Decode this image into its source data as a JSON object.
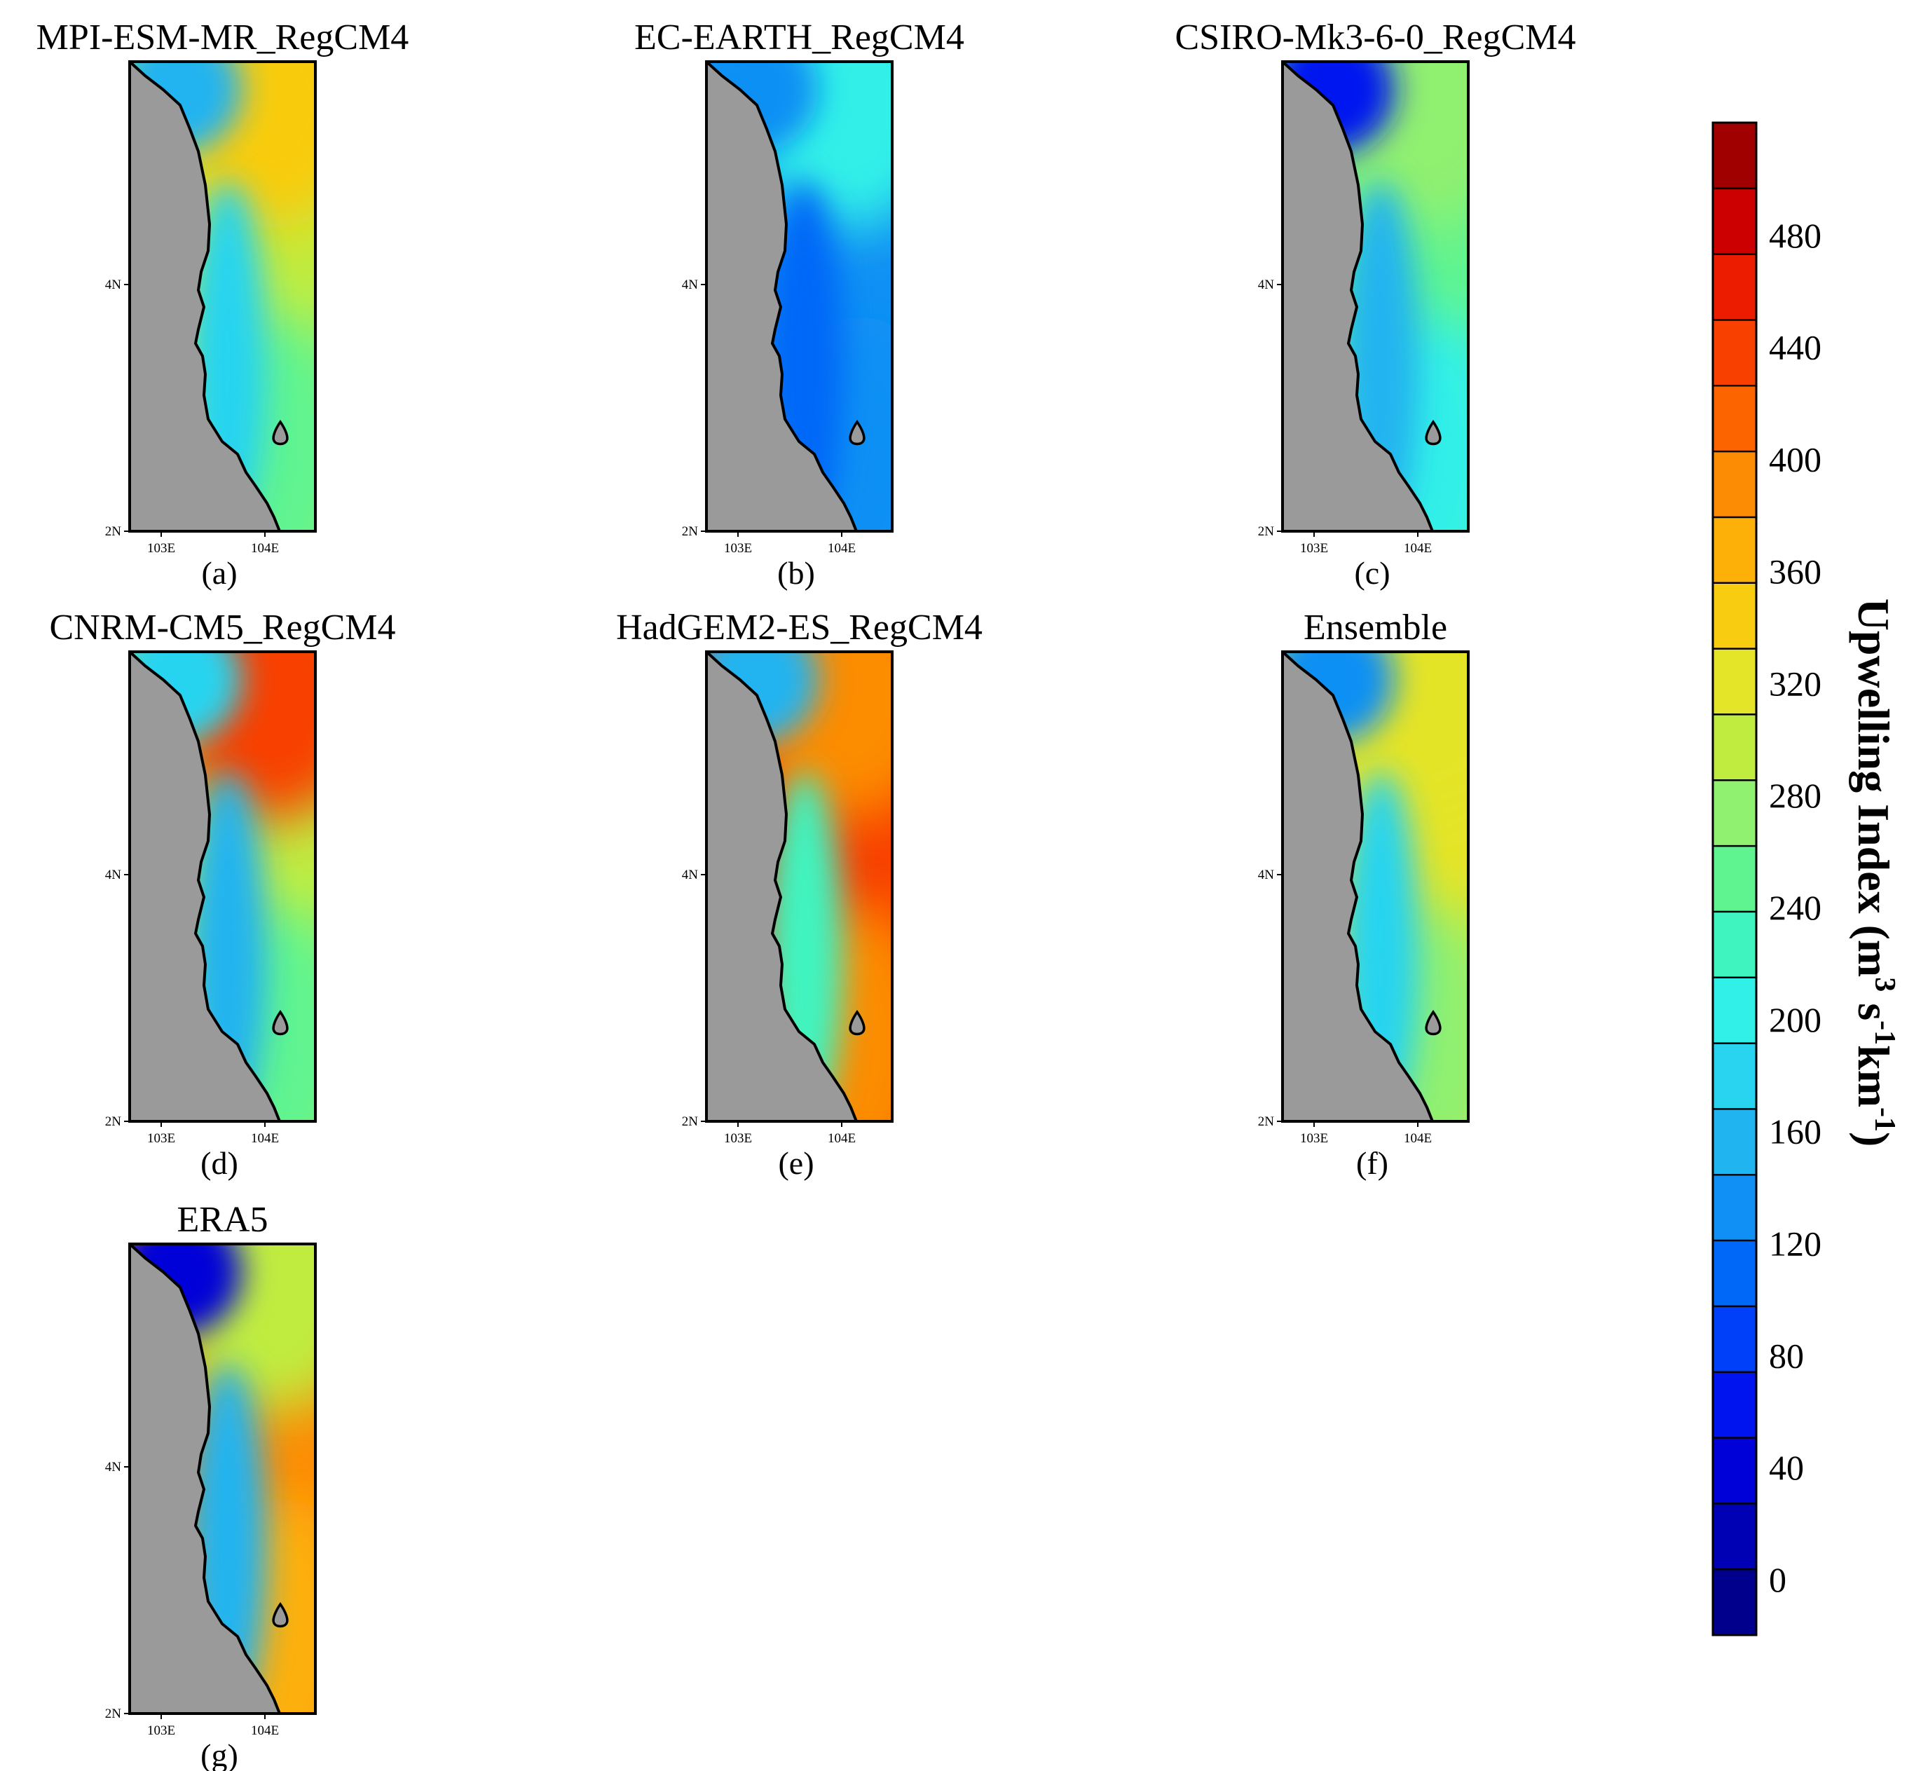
{
  "figure": {
    "latitude_ticks": [
      "4N",
      "2N"
    ],
    "longitude_ticks": [
      "103E",
      "104E"
    ],
    "panels": [
      {
        "id": "a",
        "title": "MPI-ESM-MR_RegCM4",
        "label": "(a)",
        "field": {
          "north": 350,
          "offshore": 300,
          "coastal_north": 150,
          "coastal_south": 180,
          "south_offshore": 250
        }
      },
      {
        "id": "b",
        "title": "EC-EARTH_RegCM4",
        "label": "(b)",
        "field": {
          "north": 200,
          "offshore": 130,
          "coastal_north": 140,
          "coastal_south": 100,
          "south_offshore": 130
        }
      },
      {
        "id": "c",
        "title": "CSIRO-Mk3-6-0_RegCM4",
        "label": "(c)",
        "field": {
          "north": 270,
          "offshore": 260,
          "coastal_north": 70,
          "coastal_south": 160,
          "south_offshore": 210
        }
      },
      {
        "id": "d",
        "title": "CNRM-CM5_RegCM4",
        "label": "(d)",
        "field": {
          "north": 430,
          "offshore": 300,
          "coastal_north": 180,
          "coastal_south": 150,
          "south_offshore": 260
        }
      },
      {
        "id": "e",
        "title": "HadGEM2-ES_RegCM4",
        "label": "(e)",
        "field": {
          "north": 400,
          "offshore": 440,
          "coastal_north": 160,
          "coastal_south": 230,
          "south_offshore": 380
        }
      },
      {
        "id": "f",
        "title": "Ensemble",
        "label": "(f)",
        "field": {
          "north": 320,
          "offshore": 320,
          "coastal_north": 140,
          "coastal_south": 170,
          "south_offshore": 280
        }
      },
      {
        "id": "g",
        "title": "ERA5",
        "label": "(g)",
        "field": {
          "north": 300,
          "offshore": 380,
          "coastal_north": 30,
          "coastal_south": 150,
          "south_offshore": 370
        }
      }
    ]
  },
  "colorbar": {
    "title": "Upwelling Index (m",
    "sup1": "3",
    "mid": " s",
    "sup2": "-1",
    "mid2": "km",
    "sup3": "-1",
    "close": ")",
    "ticks": [
      "480",
      "440",
      "400",
      "360",
      "320",
      "280",
      "240",
      "200",
      "160",
      "120",
      "80",
      "40",
      "0"
    ],
    "tick_values": [
      480,
      440,
      400,
      360,
      320,
      280,
      240,
      200,
      160,
      120,
      80,
      40,
      0
    ],
    "range": [
      -20,
      520
    ],
    "colors": [
      "#00008c",
      "#0000b4",
      "#0000d8",
      "#0014f0",
      "#0040f8",
      "#0068f8",
      "#1090f4",
      "#20b4f0",
      "#28d4f0",
      "#30f0e8",
      "#40f4c0",
      "#60f490",
      "#90f070",
      "#c0ec40",
      "#e4e428",
      "#f8cc10",
      "#fcb008",
      "#fc8c04",
      "#fc6400",
      "#f84000",
      "#ec1c00",
      "#cc0000",
      "#a00000"
    ]
  }
}
